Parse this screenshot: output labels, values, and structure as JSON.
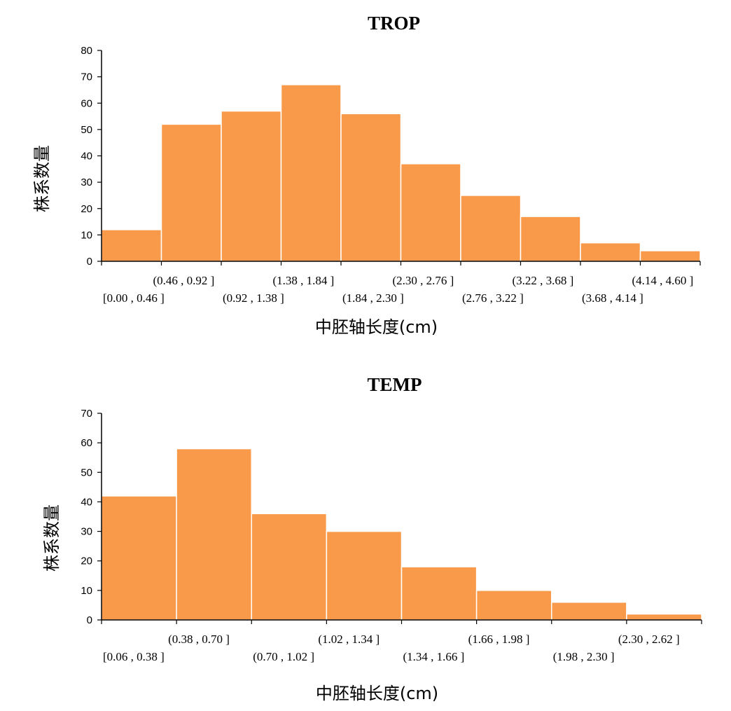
{
  "colors": {
    "bar_fill": "#F99A4A",
    "bar_stroke": "#ffffff",
    "axis": "#000000"
  },
  "chart_data": [
    {
      "type": "bar",
      "title": "TROP",
      "xlabel": "中胚轴长度(cm)",
      "ylabel": "株系数量",
      "ylim": [
        0,
        80
      ],
      "yticks": [
        0,
        10,
        20,
        30,
        40,
        50,
        60,
        70,
        80
      ],
      "grid": false,
      "categories": [
        "[0.00 , 0.46 ]",
        "(0.46 , 0.92 ]",
        "(0.92 , 1.38 ]",
        "(1.38 , 1.84 ]",
        "(1.84 , 2.30 ]",
        "(2.30 , 2.76 ]",
        "(2.76 , 3.22 ]",
        "(3.22 , 3.68 ]",
        "(3.68 , 4.14 ]",
        "(4.14 , 4.60 ]"
      ],
      "values": [
        12,
        52,
        57,
        67,
        56,
        37,
        25,
        17,
        7,
        4
      ]
    },
    {
      "type": "bar",
      "title": "TEMP",
      "xlabel": "中胚轴长度(cm)",
      "ylabel": "株系数量",
      "ylim": [
        0,
        70
      ],
      "yticks": [
        0,
        10,
        20,
        30,
        40,
        50,
        60,
        70
      ],
      "grid": false,
      "categories": [
        "[0.06 , 0.38 ]",
        "(0.38 , 0.70 ]",
        "(0.70 , 1.02 ]",
        "(1.02 , 1.34 ]",
        "(1.34 , 1.66 ]",
        "(1.66 , 1.98 ]",
        "(1.98 , 2.30 ]",
        "(2.30 , 2.62 ]"
      ],
      "values": [
        42,
        58,
        36,
        30,
        18,
        10,
        6,
        2
      ]
    }
  ]
}
